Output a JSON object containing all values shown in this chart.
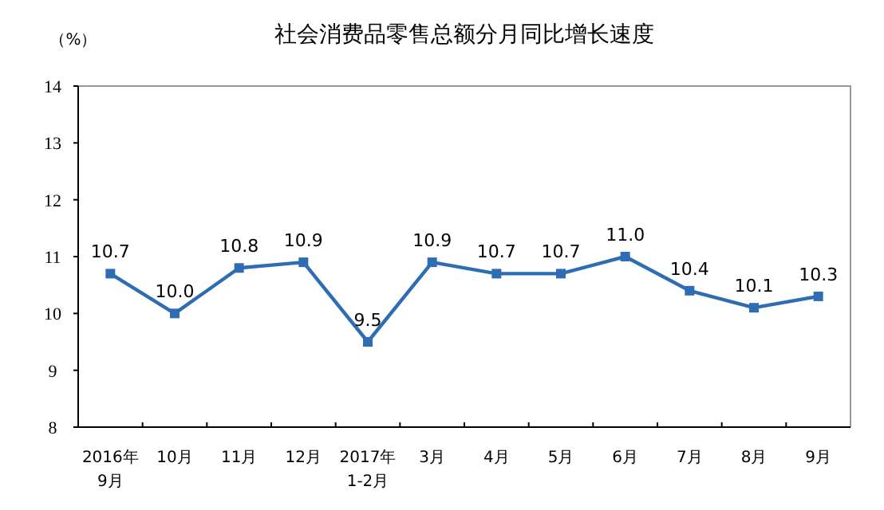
{
  "chart_data": {
    "type": "line",
    "title": "社会消费品零售总额分月同比增长速度",
    "ylabel": "（%）",
    "categories": [
      "2016年\n9月",
      "10月",
      "11月",
      "12月",
      "2017年\n1-2月",
      "3月",
      "4月",
      "5月",
      "6月",
      "7月",
      "8月",
      "9月"
    ],
    "values": [
      10.7,
      10.0,
      10.8,
      10.9,
      9.5,
      10.9,
      10.7,
      10.7,
      11.0,
      10.4,
      10.1,
      10.3
    ],
    "value_labels": [
      "10.7",
      "10.0",
      "10.8",
      "10.9",
      "9.5",
      "10.9",
      "10.7",
      "10.7",
      "11.0",
      "10.4",
      "10.1",
      "10.3"
    ],
    "color": "#2e6db4",
    "marker": "square",
    "line_style": "solid",
    "ylim": [
      8,
      14
    ],
    "yticks": [
      8,
      9,
      10,
      11,
      12,
      13,
      14
    ]
  }
}
